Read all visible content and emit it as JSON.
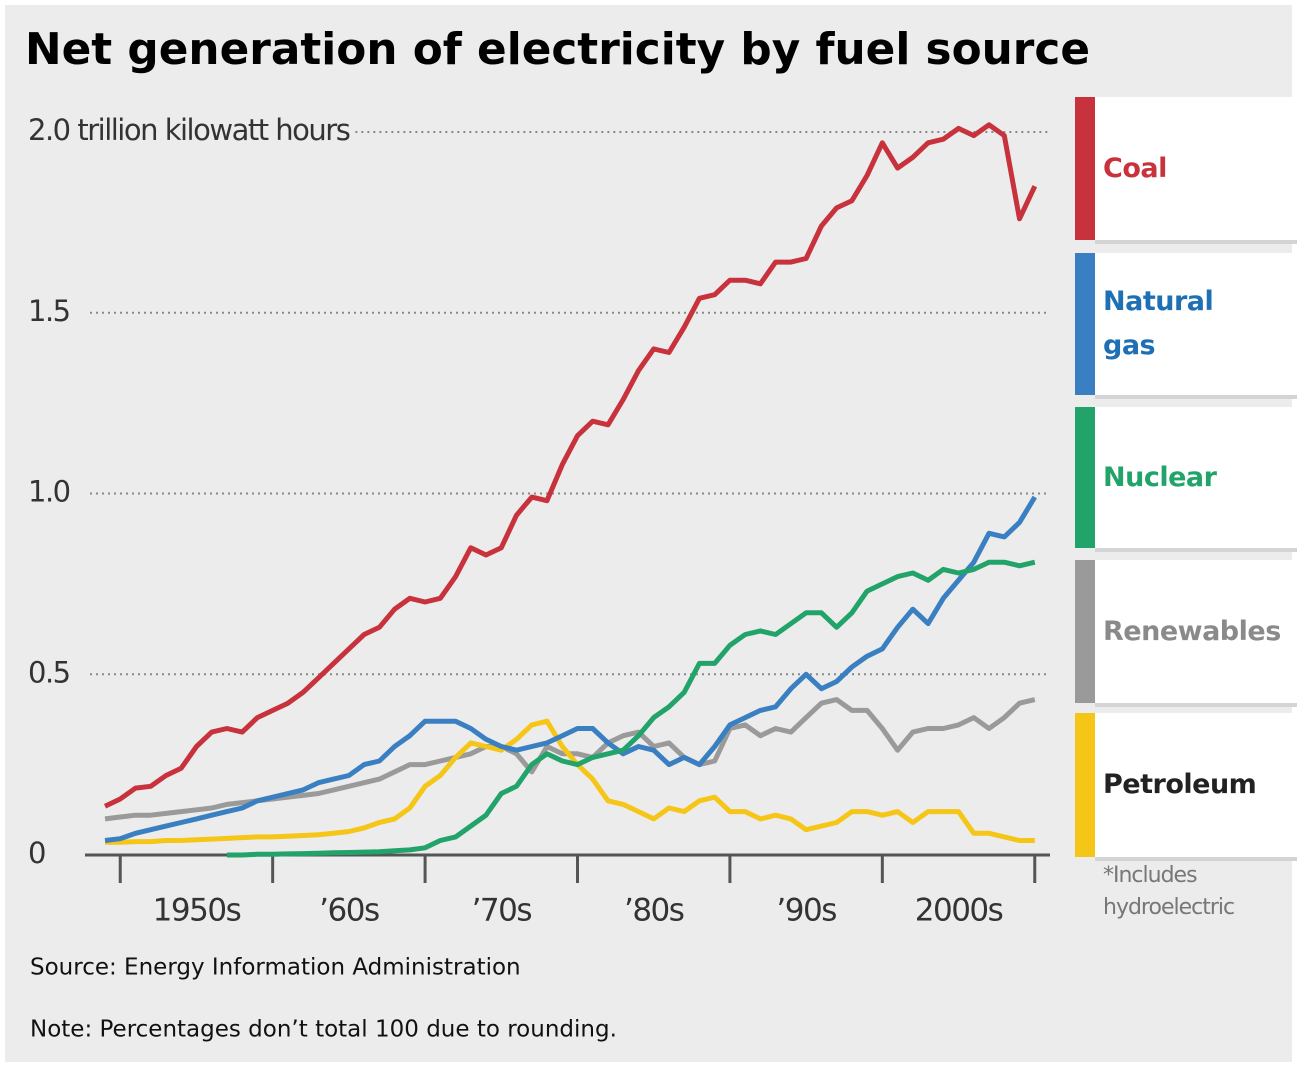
{
  "chart_data": {
    "type": "line",
    "title": "Net generation of electricity by fuel source",
    "x": [
      1949,
      1950,
      1951,
      1952,
      1953,
      1954,
      1955,
      1956,
      1957,
      1958,
      1959,
      1960,
      1961,
      1962,
      1963,
      1964,
      1965,
      1966,
      1967,
      1968,
      1969,
      1970,
      1971,
      1972,
      1973,
      1974,
      1975,
      1976,
      1977,
      1978,
      1979,
      1980,
      1981,
      1982,
      1983,
      1984,
      1985,
      1986,
      1987,
      1988,
      1989,
      1990,
      1991,
      1992,
      1993,
      1994,
      1995,
      1996,
      1997,
      1998,
      1999,
      2000,
      2001,
      2002,
      2003,
      2004,
      2005,
      2006,
      2007,
      2008,
      2009,
      2010
    ],
    "series": [
      {
        "name": "Coal",
        "color": "#c8323c",
        "label_color": "#c8323c",
        "values": [
          0.135,
          0.155,
          0.185,
          0.19,
          0.22,
          0.24,
          0.3,
          0.34,
          0.35,
          0.34,
          0.38,
          0.4,
          0.42,
          0.45,
          0.49,
          0.53,
          0.57,
          0.61,
          0.63,
          0.68,
          0.71,
          0.7,
          0.71,
          0.77,
          0.85,
          0.83,
          0.85,
          0.94,
          0.99,
          0.98,
          1.08,
          1.16,
          1.2,
          1.19,
          1.26,
          1.34,
          1.4,
          1.39,
          1.46,
          1.54,
          1.55,
          1.59,
          1.59,
          1.58,
          1.64,
          1.64,
          1.65,
          1.74,
          1.79,
          1.81,
          1.88,
          1.97,
          1.9,
          1.93,
          1.97,
          1.98,
          2.01,
          1.99,
          2.02,
          1.99,
          1.76,
          1.85
        ]
      },
      {
        "name": "Natural gas",
        "color": "#3a7fc1",
        "label_color": "#1f6fb5",
        "values": [
          0.04,
          0.045,
          0.06,
          0.07,
          0.08,
          0.09,
          0.1,
          0.11,
          0.12,
          0.13,
          0.15,
          0.16,
          0.17,
          0.18,
          0.2,
          0.21,
          0.22,
          0.25,
          0.26,
          0.3,
          0.33,
          0.37,
          0.37,
          0.37,
          0.35,
          0.32,
          0.3,
          0.29,
          0.3,
          0.31,
          0.33,
          0.35,
          0.35,
          0.31,
          0.28,
          0.3,
          0.29,
          0.25,
          0.27,
          0.25,
          0.3,
          0.36,
          0.38,
          0.4,
          0.41,
          0.46,
          0.5,
          0.46,
          0.48,
          0.52,
          0.55,
          0.57,
          0.63,
          0.68,
          0.64,
          0.71,
          0.76,
          0.81,
          0.89,
          0.88,
          0.92,
          0.99
        ]
      },
      {
        "name": "Nuclear",
        "color": "#22a36a",
        "label_color": "#22a36a",
        "values": [
          null,
          null,
          null,
          null,
          null,
          null,
          null,
          null,
          0.0,
          0.0,
          0.002,
          0.002,
          0.003,
          0.004,
          0.005,
          0.006,
          0.007,
          0.008,
          0.009,
          0.012,
          0.014,
          0.02,
          0.04,
          0.05,
          0.08,
          0.11,
          0.17,
          0.19,
          0.25,
          0.28,
          0.26,
          0.25,
          0.27,
          0.28,
          0.29,
          0.33,
          0.38,
          0.41,
          0.45,
          0.53,
          0.53,
          0.58,
          0.61,
          0.62,
          0.61,
          0.64,
          0.67,
          0.67,
          0.63,
          0.67,
          0.73,
          0.75,
          0.77,
          0.78,
          0.76,
          0.79,
          0.78,
          0.79,
          0.81,
          0.81,
          0.8,
          0.81
        ]
      },
      {
        "name": "Renewables",
        "color": "#9a9a9a",
        "label_color": "#8a8a8a",
        "values": [
          0.1,
          0.105,
          0.11,
          0.11,
          0.115,
          0.12,
          0.125,
          0.13,
          0.14,
          0.145,
          0.15,
          0.155,
          0.16,
          0.165,
          0.17,
          0.18,
          0.19,
          0.2,
          0.21,
          0.23,
          0.25,
          0.25,
          0.26,
          0.27,
          0.28,
          0.3,
          0.3,
          0.28,
          0.23,
          0.3,
          0.28,
          0.28,
          0.27,
          0.31,
          0.33,
          0.34,
          0.3,
          0.31,
          0.27,
          0.25,
          0.26,
          0.35,
          0.36,
          0.33,
          0.35,
          0.34,
          0.38,
          0.42,
          0.43,
          0.4,
          0.4,
          0.35,
          0.29,
          0.34,
          0.35,
          0.35,
          0.36,
          0.38,
          0.35,
          0.38,
          0.42,
          0.43
        ]
      },
      {
        "name": "Petroleum",
        "color": "#f5c518",
        "label_color": "#222222",
        "values": [
          0.035,
          0.035,
          0.037,
          0.037,
          0.04,
          0.04,
          0.042,
          0.044,
          0.046,
          0.048,
          0.05,
          0.05,
          0.052,
          0.054,
          0.056,
          0.06,
          0.065,
          0.075,
          0.09,
          0.1,
          0.13,
          0.19,
          0.22,
          0.27,
          0.31,
          0.3,
          0.29,
          0.32,
          0.36,
          0.37,
          0.3,
          0.25,
          0.21,
          0.15,
          0.14,
          0.12,
          0.1,
          0.13,
          0.12,
          0.15,
          0.16,
          0.12,
          0.12,
          0.1,
          0.11,
          0.1,
          0.07,
          0.08,
          0.09,
          0.12,
          0.12,
          0.11,
          0.12,
          0.09,
          0.12,
          0.12,
          0.12,
          0.06,
          0.06,
          0.05,
          0.04,
          0.04
        ]
      }
    ],
    "xlim": [
      1949,
      2011
    ],
    "xticks": [
      1950,
      1960,
      1970,
      1980,
      1990,
      2000,
      2010
    ],
    "x_labels": [
      {
        "value": 1955,
        "label": "1950s"
      },
      {
        "value": 1965,
        "label": "’60s"
      },
      {
        "value": 1975,
        "label": "’70s"
      },
      {
        "value": 1985,
        "label": "’80s"
      },
      {
        "value": 1995,
        "label": "’90s"
      },
      {
        "value": 2005,
        "label": "2000s"
      }
    ],
    "ylim": [
      0,
      2
    ],
    "yticks": [
      0,
      0.5,
      {
        "value": 1,
        "label": "1.0"
      },
      1.5,
      {
        "value": 2,
        "label": "2.0 trillion kilowatt hours"
      }
    ],
    "grid": true,
    "legend": "right",
    "footnote": "*Includes hydroelectric",
    "source": "Source: Energy Information Administration",
    "note": "Note: Percentages don’t total 100 due to rounding."
  }
}
